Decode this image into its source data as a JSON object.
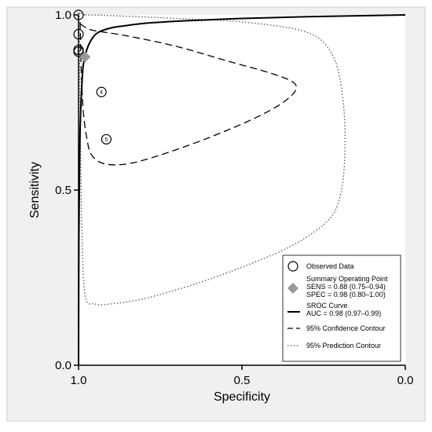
{
  "chart_data": {
    "type": "scatter",
    "xlabel": "Specificity",
    "ylabel": "Sensitivity",
    "x_reversed": true,
    "xlim": [
      1.0,
      0.0
    ],
    "ylim": [
      0.0,
      1.0
    ],
    "x_ticks": [
      "1.0",
      "0.5",
      "0.0"
    ],
    "y_ticks": [
      "0.0",
      "0.5",
      "1.0"
    ],
    "grid": false,
    "legend_position": "bottom-right",
    "observed_data": {
      "name": "Observed Data",
      "points": [
        {
          "specificity": 1.0,
          "sensitivity": 1.0,
          "label": "1"
        },
        {
          "specificity": 1.0,
          "sensitivity": 0.945,
          "label": ""
        },
        {
          "specificity": 1.0,
          "sensitivity": 0.9,
          "label": ""
        },
        {
          "specificity": 1.0,
          "sensitivity": 0.895,
          "label": "2"
        },
        {
          "specificity": 0.93,
          "sensitivity": 0.78,
          "label": "4"
        },
        {
          "specificity": 0.915,
          "sensitivity": 0.645,
          "label": "5"
        }
      ]
    },
    "summary_point": {
      "name": "Summary Operating Point",
      "sens_text": "SENS = 0.88 (0.75–0.94)",
      "spec_text": "SPEC = 0.98 (0.80–1.00)",
      "specificity": 0.98,
      "sensitivity": 0.88,
      "color": "#999999"
    },
    "sroc_curve": {
      "name": "SROC Curve",
      "auc_text": "AUC = 0.98 (0.97–0.99)",
      "points": [
        [
          1.0,
          0.0
        ],
        [
          0.999,
          0.35
        ],
        [
          0.997,
          0.55
        ],
        [
          0.995,
          0.68
        ],
        [
          0.99,
          0.8
        ],
        [
          0.985,
          0.86
        ],
        [
          0.975,
          0.9
        ],
        [
          0.96,
          0.93
        ],
        [
          0.94,
          0.95
        ],
        [
          0.9,
          0.963
        ],
        [
          0.85,
          0.97
        ],
        [
          0.8,
          0.976
        ],
        [
          0.7,
          0.982
        ],
        [
          0.6,
          0.986
        ],
        [
          0.5,
          0.99
        ],
        [
          0.3,
          0.995
        ],
        [
          0.0,
          1.0
        ]
      ]
    },
    "confidence_contour": {
      "name": "95% Confidence Contour",
      "points": [
        [
          0.995,
          0.975
        ],
        [
          0.98,
          0.965
        ],
        [
          0.95,
          0.955
        ],
        [
          0.85,
          0.94
        ],
        [
          0.7,
          0.91
        ],
        [
          0.55,
          0.87
        ],
        [
          0.4,
          0.83
        ],
        [
          0.335,
          0.8
        ],
        [
          0.36,
          0.76
        ],
        [
          0.45,
          0.71
        ],
        [
          0.6,
          0.65
        ],
        [
          0.75,
          0.6
        ],
        [
          0.85,
          0.575
        ],
        [
          0.92,
          0.575
        ],
        [
          0.96,
          0.6
        ],
        [
          0.975,
          0.65
        ],
        [
          0.985,
          0.72
        ],
        [
          0.99,
          0.8
        ],
        [
          0.993,
          0.88
        ],
        [
          0.995,
          0.975
        ]
      ]
    },
    "prediction_contour": {
      "name": "95% Prediction Contour",
      "points": [
        [
          0.98,
          1.0
        ],
        [
          0.9,
          0.998
        ],
        [
          0.7,
          0.99
        ],
        [
          0.5,
          0.98
        ],
        [
          0.3,
          0.95
        ],
        [
          0.22,
          0.88
        ],
        [
          0.19,
          0.75
        ],
        [
          0.185,
          0.6
        ],
        [
          0.2,
          0.48
        ],
        [
          0.24,
          0.41
        ],
        [
          0.35,
          0.34
        ],
        [
          0.5,
          0.28
        ],
        [
          0.65,
          0.23
        ],
        [
          0.8,
          0.19
        ],
        [
          0.9,
          0.175
        ],
        [
          0.95,
          0.175
        ],
        [
          0.98,
          0.2
        ],
        [
          0.99,
          0.4
        ],
        [
          0.995,
          0.7
        ],
        [
          0.997,
          0.9
        ],
        [
          0.998,
          1.0
        ]
      ]
    }
  }
}
